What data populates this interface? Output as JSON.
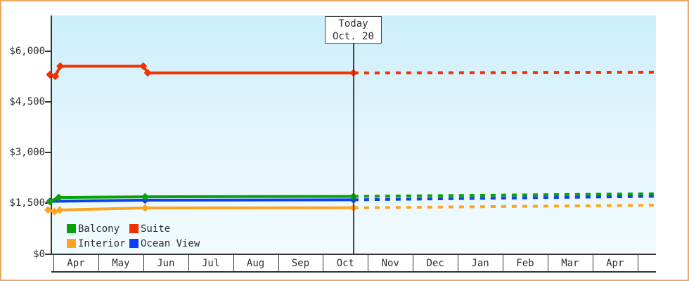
{
  "chart_data": {
    "type": "line",
    "title": "",
    "y_axis": {
      "tick_labels": [
        "$6,000",
        "$4,500",
        "$3,000",
        "$1,500",
        "$0"
      ],
      "tick_values": [
        6000,
        4500,
        3000,
        1500,
        0
      ],
      "range": [
        0,
        6250
      ],
      "grid": false
    },
    "x_axis": {
      "categories": [
        "Apr",
        "May",
        "Jun",
        "Jul",
        "Aug",
        "Sep",
        "Oct",
        "Nov",
        "Dec",
        "Jan",
        "Feb",
        "Mar",
        "Apr"
      ],
      "months_span": 13.4
    },
    "today_marker": {
      "title": "Today",
      "date_label": "Oct. 20",
      "month_frac": 6.68
    },
    "series": [
      {
        "name": "Balcony",
        "color": "#0aa00a",
        "solid_points": [
          [
            -0.08,
            1550
          ],
          [
            0.12,
            1670
          ],
          [
            2.04,
            1690
          ],
          [
            6.68,
            1700
          ]
        ],
        "forecast_points": [
          [
            6.68,
            1700
          ],
          [
            13.4,
            1780
          ]
        ]
      },
      {
        "name": "Suite",
        "color": "#f23000",
        "solid_points": [
          [
            -0.08,
            5300
          ],
          [
            0.04,
            5250
          ],
          [
            0.15,
            5550
          ],
          [
            2.0,
            5550
          ],
          [
            2.1,
            5350
          ],
          [
            6.68,
            5350
          ]
        ],
        "forecast_points": [
          [
            6.68,
            5350
          ],
          [
            13.4,
            5370
          ]
        ]
      },
      {
        "name": "Interior",
        "color": "#ffa41e",
        "solid_points": [
          [
            -0.12,
            1300
          ],
          [
            0.02,
            1255
          ],
          [
            0.14,
            1300
          ],
          [
            2.04,
            1360
          ],
          [
            6.68,
            1365
          ]
        ],
        "forecast_points": [
          [
            6.68,
            1365
          ],
          [
            13.4,
            1440
          ]
        ]
      },
      {
        "name": "Ocean View",
        "color": "#0c40f0",
        "solid_points": [
          [
            -0.08,
            1555
          ],
          [
            2.04,
            1590
          ],
          [
            6.68,
            1600
          ]
        ],
        "forecast_points": [
          [
            6.68,
            1600
          ],
          [
            13.4,
            1705
          ]
        ]
      }
    ],
    "legend": {
      "rows": [
        [
          "Balcony",
          "Suite"
        ],
        [
          "Interior",
          "Ocean View"
        ]
      ],
      "position": "inside-bottom-left"
    },
    "styles": {
      "frame_border": "#eaa962",
      "plot_bg_top": "#cceefb",
      "plot_bg_bottom": "#f1fbff",
      "axis_color": "#333333",
      "text_color": "#2e2e2e",
      "today_line_color": "#444444"
    }
  }
}
